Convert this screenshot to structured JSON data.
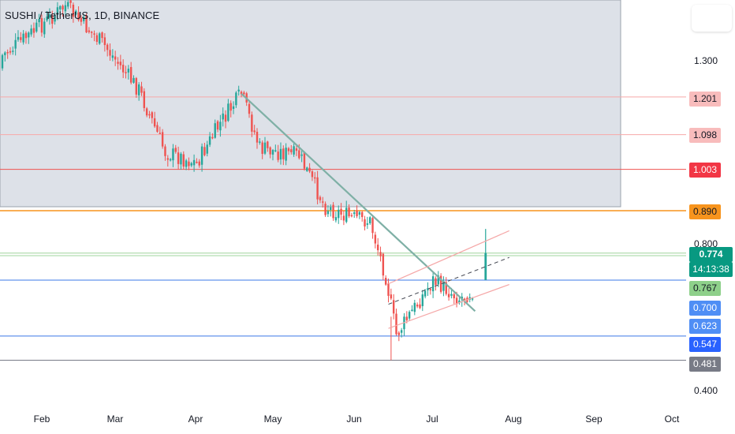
{
  "header": {
    "symbol_title": "SUSHI / TetherUS, 1D, BINANCE"
  },
  "price_axis": {
    "ticks": [
      "1.300",
      "0.800",
      "0.400"
    ]
  },
  "price_labels": [
    {
      "value": "1.201",
      "bg": "#f8bcbc",
      "fg": "#131722"
    },
    {
      "value": "1.098",
      "bg": "#f8bcbc",
      "fg": "#131722"
    },
    {
      "value": "1.003",
      "bg": "#f23645",
      "fg": "#ffffff"
    },
    {
      "value": "0.890",
      "bg": "#f7941d",
      "fg": "#131722"
    },
    {
      "value": "0.767",
      "bg": "#8ed08a",
      "fg": "#131722"
    },
    {
      "value": "0.700",
      "bg": "#4f8ef5",
      "fg": "#ffffff"
    },
    {
      "value": "0.623",
      "bg": "#4f8ef5",
      "fg": "#ffffff"
    },
    {
      "value": "0.547",
      "bg": "#2962ff",
      "fg": "#ffffff"
    },
    {
      "value": "0.481",
      "bg": "#787b86",
      "fg": "#ffffff"
    }
  ],
  "last_price": {
    "value": "0.774",
    "countdown": "14:13:38",
    "bg": "#089981",
    "fg": "#ffffff"
  },
  "time_axis": {
    "labels": [
      "Feb",
      "Mar",
      "Apr",
      "May",
      "Jun",
      "Jul",
      "Aug",
      "Sep",
      "Oct"
    ]
  },
  "colors": {
    "up": "#26a69a",
    "down": "#ef5350",
    "trendline": "#7fb0a6",
    "channel": "#f5a7a7",
    "midline": "#434651",
    "orange_line": "#f7941d",
    "resistance_line": "#f7a9a9",
    "support_line": "#3b78e7",
    "green_line": "#9fd49c",
    "gray_line": "#787b86"
  },
  "chart_data": {
    "type": "candlestick",
    "instrument": "SUSHI / TetherUS",
    "timeframe": "1D",
    "exchange": "BINANCE",
    "x_labels": [
      "Feb",
      "Mar",
      "Apr",
      "May",
      "Jun",
      "Jul",
      "Aug",
      "Sep",
      "Oct"
    ],
    "y_ticks": [
      1.3,
      0.8,
      0.4
    ],
    "horizontal_levels": [
      1.201,
      1.098,
      1.003,
      0.89,
      0.767,
      0.7,
      0.623,
      0.547,
      0.481
    ],
    "last_price": 0.774,
    "price_path": [
      {
        "date": "Jan 10",
        "price": 1.28
      },
      {
        "date": "Jan 20",
        "price": 1.33
      },
      {
        "date": "Feb 10",
        "price": 1.45
      },
      {
        "date": "Feb 25",
        "price": 1.34
      },
      {
        "date": "Mar 10",
        "price": 1.22
      },
      {
        "date": "Mar 20",
        "price": 1.05
      },
      {
        "date": "Apr 1",
        "price": 1.02
      },
      {
        "date": "Apr 10",
        "price": 1.13
      },
      {
        "date": "Apr 18",
        "price": 1.21
      },
      {
        "date": "Apr 25",
        "price": 1.06
      },
      {
        "date": "May 10",
        "price": 1.04
      },
      {
        "date": "May 20",
        "price": 0.9
      },
      {
        "date": "May 30",
        "price": 0.87
      },
      {
        "date": "Jun 6",
        "price": 0.86
      },
      {
        "date": "Jun 12",
        "price": 0.71
      },
      {
        "date": "Jun 16",
        "price": 0.55
      },
      {
        "date": "Jun 30",
        "price": 0.7
      },
      {
        "date": "Jul 10",
        "price": 0.65
      },
      {
        "date": "Jul 17",
        "price": 0.68
      },
      {
        "date": "Jul 20",
        "price": 0.774
      }
    ]
  }
}
